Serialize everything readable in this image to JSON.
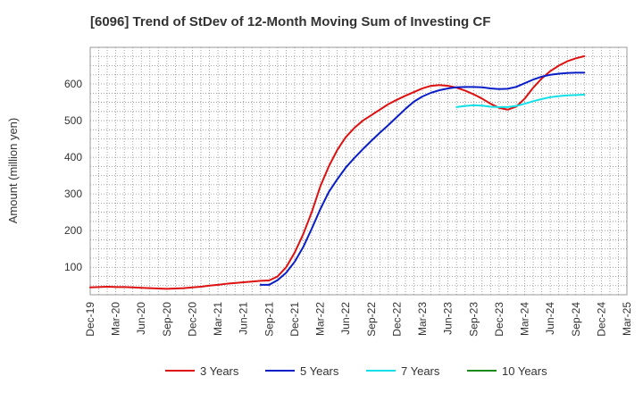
{
  "chart_data": {
    "type": "line",
    "title": "[6096]  Trend of StDev of 12-Month Moving Sum of Investing CF",
    "xlabel": "",
    "ylabel": "Amount (million yen)",
    "ylim": [
      25,
      700
    ],
    "yticks": [
      100,
      200,
      300,
      400,
      500,
      600
    ],
    "x_tick_labels": [
      "Dec-19",
      "Mar-20",
      "Jun-20",
      "Sep-20",
      "Dec-20",
      "Mar-21",
      "Jun-21",
      "Sep-21",
      "Dec-21",
      "Mar-22",
      "Jun-22",
      "Sep-22",
      "Dec-22",
      "Mar-23",
      "Jun-23",
      "Sep-23",
      "Dec-23",
      "Mar-24",
      "Jun-24",
      "Sep-24",
      "Dec-24",
      "Mar-25"
    ],
    "grid": true,
    "legend_position": "bottom",
    "series": [
      {
        "name": "3 Years",
        "color": "#dd1111",
        "values": [
          {
            "x": "Dec-19",
            "y": 45
          },
          {
            "x": "Jan-20",
            "y": 46
          },
          {
            "x": "Feb-20",
            "y": 47
          },
          {
            "x": "Mar-20",
            "y": 46
          },
          {
            "x": "Apr-20",
            "y": 46
          },
          {
            "x": "May-20",
            "y": 45
          },
          {
            "x": "Jun-20",
            "y": 44
          },
          {
            "x": "Jul-20",
            "y": 43
          },
          {
            "x": "Aug-20",
            "y": 42
          },
          {
            "x": "Sep-20",
            "y": 41
          },
          {
            "x": "Oct-20",
            "y": 42
          },
          {
            "x": "Nov-20",
            "y": 43
          },
          {
            "x": "Dec-20",
            "y": 45
          },
          {
            "x": "Jan-21",
            "y": 47
          },
          {
            "x": "Feb-21",
            "y": 50
          },
          {
            "x": "Mar-21",
            "y": 52
          },
          {
            "x": "Apr-21",
            "y": 55
          },
          {
            "x": "May-21",
            "y": 57
          },
          {
            "x": "Jun-21",
            "y": 59
          },
          {
            "x": "Jul-21",
            "y": 61
          },
          {
            "x": "Aug-21",
            "y": 63
          },
          {
            "x": "Sep-21",
            "y": 64
          },
          {
            "x": "Oct-21",
            "y": 75
          },
          {
            "x": "Nov-21",
            "y": 100
          },
          {
            "x": "Dec-21",
            "y": 140
          },
          {
            "x": "Jan-22",
            "y": 190
          },
          {
            "x": "Feb-22",
            "y": 250
          },
          {
            "x": "Mar-22",
            "y": 320
          },
          {
            "x": "Apr-22",
            "y": 375
          },
          {
            "x": "May-22",
            "y": 420
          },
          {
            "x": "Jun-22",
            "y": 455
          },
          {
            "x": "Jul-22",
            "y": 480
          },
          {
            "x": "Aug-22",
            "y": 500
          },
          {
            "x": "Sep-22",
            "y": 515
          },
          {
            "x": "Oct-22",
            "y": 530
          },
          {
            "x": "Nov-22",
            "y": 545
          },
          {
            "x": "Dec-22",
            "y": 557
          },
          {
            "x": "Jan-23",
            "y": 568
          },
          {
            "x": "Feb-23",
            "y": 578
          },
          {
            "x": "Mar-23",
            "y": 588
          },
          {
            "x": "Apr-23",
            "y": 595
          },
          {
            "x": "May-23",
            "y": 597
          },
          {
            "x": "Jun-23",
            "y": 595
          },
          {
            "x": "Jul-23",
            "y": 590
          },
          {
            "x": "Aug-23",
            "y": 582
          },
          {
            "x": "Sep-23",
            "y": 572
          },
          {
            "x": "Oct-23",
            "y": 560
          },
          {
            "x": "Nov-23",
            "y": 546
          },
          {
            "x": "Dec-23",
            "y": 535
          },
          {
            "x": "Jan-24",
            "y": 530
          },
          {
            "x": "Feb-24",
            "y": 538
          },
          {
            "x": "Mar-24",
            "y": 560
          },
          {
            "x": "Apr-24",
            "y": 590
          },
          {
            "x": "May-24",
            "y": 615
          },
          {
            "x": "Jun-24",
            "y": 635
          },
          {
            "x": "Jul-24",
            "y": 650
          },
          {
            "x": "Aug-24",
            "y": 662
          },
          {
            "x": "Sep-24",
            "y": 670
          },
          {
            "x": "Oct-24",
            "y": 676
          }
        ]
      },
      {
        "name": "5 Years",
        "color": "#0a1ec8",
        "values": [
          {
            "x": "Aug-21",
            "y": 52
          },
          {
            "x": "Sep-21",
            "y": 52
          },
          {
            "x": "Oct-21",
            "y": 65
          },
          {
            "x": "Nov-21",
            "y": 85
          },
          {
            "x": "Dec-21",
            "y": 115
          },
          {
            "x": "Jan-22",
            "y": 155
          },
          {
            "x": "Feb-22",
            "y": 205
          },
          {
            "x": "Mar-22",
            "y": 258
          },
          {
            "x": "Apr-22",
            "y": 305
          },
          {
            "x": "May-22",
            "y": 340
          },
          {
            "x": "Jun-22",
            "y": 372
          },
          {
            "x": "Jul-22",
            "y": 398
          },
          {
            "x": "Aug-22",
            "y": 422
          },
          {
            "x": "Sep-22",
            "y": 445
          },
          {
            "x": "Oct-22",
            "y": 467
          },
          {
            "x": "Nov-22",
            "y": 488
          },
          {
            "x": "Dec-22",
            "y": 510
          },
          {
            "x": "Jan-23",
            "y": 532
          },
          {
            "x": "Feb-23",
            "y": 552
          },
          {
            "x": "Mar-23",
            "y": 566
          },
          {
            "x": "Apr-23",
            "y": 576
          },
          {
            "x": "May-23",
            "y": 583
          },
          {
            "x": "Jun-23",
            "y": 588
          },
          {
            "x": "Jul-23",
            "y": 591
          },
          {
            "x": "Aug-23",
            "y": 592
          },
          {
            "x": "Sep-23",
            "y": 592
          },
          {
            "x": "Oct-23",
            "y": 591
          },
          {
            "x": "Nov-23",
            "y": 588
          },
          {
            "x": "Dec-23",
            "y": 586
          },
          {
            "x": "Jan-24",
            "y": 587
          },
          {
            "x": "Feb-24",
            "y": 592
          },
          {
            "x": "Mar-24",
            "y": 602
          },
          {
            "x": "Apr-24",
            "y": 612
          },
          {
            "x": "May-24",
            "y": 620
          },
          {
            "x": "Jun-24",
            "y": 625
          },
          {
            "x": "Jul-24",
            "y": 628
          },
          {
            "x": "Aug-24",
            "y": 630
          },
          {
            "x": "Sep-24",
            "y": 631
          },
          {
            "x": "Oct-24",
            "y": 631
          }
        ]
      },
      {
        "name": "7 Years",
        "color": "#11e0e8",
        "values": [
          {
            "x": "Jul-23",
            "y": 537
          },
          {
            "x": "Aug-23",
            "y": 540
          },
          {
            "x": "Sep-23",
            "y": 542
          },
          {
            "x": "Oct-23",
            "y": 541
          },
          {
            "x": "Nov-23",
            "y": 538
          },
          {
            "x": "Dec-23",
            "y": 537
          },
          {
            "x": "Jan-24",
            "y": 537
          },
          {
            "x": "Feb-24",
            "y": 540
          },
          {
            "x": "Mar-24",
            "y": 546
          },
          {
            "x": "Apr-24",
            "y": 553
          },
          {
            "x": "May-24",
            "y": 559
          },
          {
            "x": "Jun-24",
            "y": 564
          },
          {
            "x": "Jul-24",
            "y": 567
          },
          {
            "x": "Aug-24",
            "y": 569
          },
          {
            "x": "Sep-24",
            "y": 570
          },
          {
            "x": "Oct-24",
            "y": 571
          }
        ]
      },
      {
        "name": "10 Years",
        "color": "#1a8a1a",
        "values": []
      }
    ]
  }
}
